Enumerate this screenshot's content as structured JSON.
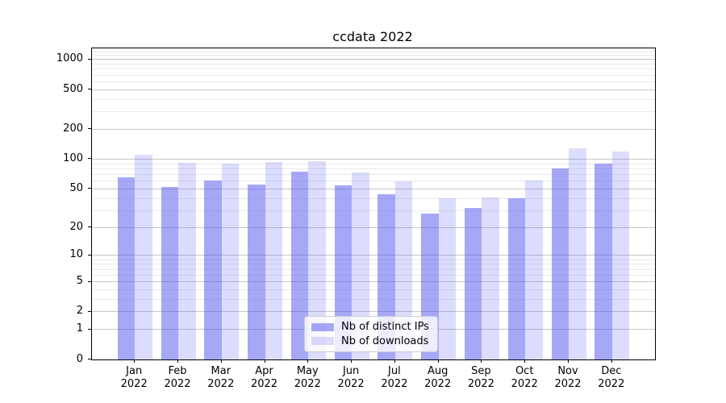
{
  "figure": {
    "title": "ccdata 2022"
  },
  "chart_data": {
    "type": "bar",
    "title": "ccdata 2022",
    "categories": [
      "Jan 2022",
      "Feb 2022",
      "Mar 2022",
      "Apr 2022",
      "May 2022",
      "Jun 2022",
      "Jul 2022",
      "Aug 2022",
      "Sep 2022",
      "Oct 2022",
      "Nov 2022",
      "Dec 2022"
    ],
    "series": [
      {
        "name": "Nb of distinct IPs",
        "color": "rgba(80,80,240,0.5)",
        "solid_color": "#a8a8f8",
        "values": [
          65,
          52,
          61,
          55,
          75,
          54,
          44,
          28,
          32,
          40,
          80,
          90
        ]
      },
      {
        "name": "Nb of downloads",
        "color": "rgba(80,80,240,0.2)",
        "solid_color": "#dcdcfc",
        "values": [
          111,
          92,
          90,
          94,
          95,
          74,
          60,
          40,
          41,
          61,
          130,
          120
        ]
      }
    ],
    "xlabel": "",
    "ylabel": "",
    "y_scale": "log1p",
    "ylim": [
      0,
      1300
    ],
    "y_ticks": [
      0,
      1,
      2,
      5,
      10,
      20,
      50,
      100,
      200,
      500,
      1000
    ],
    "y_minor_ticks": [
      3,
      4,
      6,
      7,
      8,
      9,
      30,
      40,
      60,
      70,
      80,
      90,
      300,
      400,
      600,
      700,
      800,
      900,
      1100,
      1200
    ],
    "grid": "horizontal, major and minor",
    "legend_position": "lower center"
  },
  "colors": {
    "major_grid": "#c6c6c6",
    "minor_grid": "#eaeaea",
    "axis": "#000000",
    "background": "#ffffff"
  }
}
